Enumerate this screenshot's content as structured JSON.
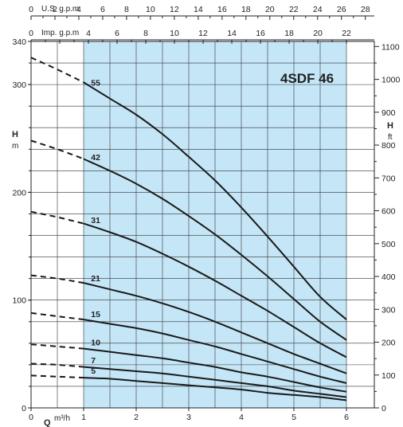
{
  "chart_data": {
    "type": "line",
    "title": "4SDF 46",
    "shaded_region": {
      "x_from": 1,
      "x_to": 6,
      "color": "#c5e6f7"
    },
    "xlim": [
      0,
      6.2
    ],
    "ylim": [
      0,
      340
    ],
    "x_ticks": [
      0,
      1,
      2,
      3,
      4,
      5,
      6
    ],
    "xlabel": "Q",
    "xlabel_unit": "m³/h",
    "ylabel": "H",
    "ylabel_unit": "m",
    "y_ticks": [
      0,
      100,
      200,
      300,
      340
    ],
    "y2_label": "H",
    "y2_unit": "ft",
    "y2_ticks": [
      0,
      100,
      200,
      300,
      400,
      500,
      600,
      700,
      800,
      900,
      1000,
      1100
    ],
    "top_axis_1": {
      "label": "U.S. g.p.m",
      "ticks": [
        0,
        2,
        4,
        6,
        8,
        10,
        12,
        14,
        16,
        18,
        20,
        22,
        24,
        26,
        28
      ]
    },
    "top_axis_2": {
      "label": "Imp. g.p.m",
      "ticks": [
        0,
        4,
        6,
        8,
        10,
        12,
        14,
        16,
        18,
        20,
        22
      ]
    },
    "series": [
      {
        "name": "55",
        "x": [
          0,
          0.5,
          1,
          1.5,
          2,
          2.5,
          3,
          3.5,
          4,
          4.5,
          5,
          5.5,
          6
        ],
        "y": [
          325,
          314,
          302,
          287,
          272,
          254,
          233,
          211,
          186,
          159,
          131,
          103,
          82
        ]
      },
      {
        "name": "42",
        "x": [
          0,
          0.5,
          1,
          1.5,
          2,
          2.5,
          3,
          3.5,
          4,
          4.5,
          5,
          5.5,
          6
        ],
        "y": [
          248,
          240,
          231,
          220,
          208,
          194,
          178,
          161,
          142,
          122,
          101,
          80,
          63
        ]
      },
      {
        "name": "31",
        "x": [
          0,
          0.5,
          1,
          1.5,
          2,
          2.5,
          3,
          3.5,
          4,
          4.5,
          5,
          5.5,
          6
        ],
        "y": [
          182,
          177,
          171,
          163,
          154,
          143,
          131,
          118,
          104,
          90,
          75,
          60,
          47
        ]
      },
      {
        "name": "21",
        "x": [
          0,
          0.5,
          1,
          1.5,
          2,
          2.5,
          3,
          3.5,
          4,
          4.5,
          5,
          5.5,
          6
        ],
        "y": [
          123,
          120,
          116,
          110,
          104,
          97,
          89,
          80,
          70,
          60,
          50,
          41,
          32
        ]
      },
      {
        "name": "15",
        "x": [
          0,
          0.5,
          1,
          1.5,
          2,
          2.5,
          3,
          3.5,
          4,
          4.5,
          5,
          5.5,
          6
        ],
        "y": [
          88,
          85,
          82,
          78,
          74,
          69,
          63,
          57,
          50,
          43,
          36,
          29,
          23
        ]
      },
      {
        "name": "10",
        "x": [
          0,
          0.5,
          1,
          1.5,
          2,
          2.5,
          3,
          3.5,
          4,
          4.5,
          5,
          5.5,
          6
        ],
        "y": [
          59,
          57,
          55,
          52,
          49,
          46,
          42,
          38,
          33,
          29,
          24,
          19,
          15
        ]
      },
      {
        "name": "7",
        "x": [
          0,
          0.5,
          1,
          1.5,
          2,
          2.5,
          3,
          3.5,
          4,
          4.5,
          5,
          5.5,
          6
        ],
        "y": [
          41,
          40,
          38,
          36,
          34,
          32,
          29,
          26,
          23,
          20,
          16,
          13,
          10
        ]
      },
      {
        "name": "5",
        "x": [
          0,
          0.5,
          1,
          1.5,
          2,
          2.5,
          3,
          3.5,
          4,
          4.5,
          5,
          5.5,
          6
        ],
        "y": [
          30,
          29,
          28,
          27,
          25,
          23,
          21,
          19,
          17,
          14,
          12,
          10,
          7
        ]
      }
    ],
    "dashed_below_x": 1,
    "grid": true,
    "legend": "none"
  }
}
